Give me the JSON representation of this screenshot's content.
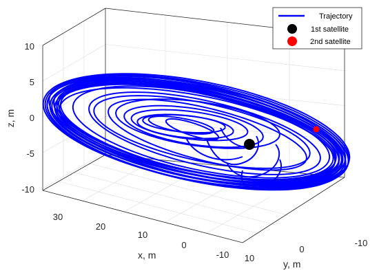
{
  "chart_data": {
    "type": "line",
    "projection": "3d",
    "title": "",
    "xlabel": "x, m",
    "ylabel": "y, m",
    "zlabel": "z, m",
    "xlim": [
      -10,
      35
    ],
    "ylim": [
      -10,
      10
    ],
    "zlim": [
      -12,
      11
    ],
    "x_ticks": [
      "30",
      "20",
      "10",
      "0",
      "-10"
    ],
    "y_ticks": [
      "10",
      "0",
      "-10"
    ],
    "z_ticks": [
      "10",
      "5",
      "0",
      "-5",
      "-10"
    ],
    "grid": true,
    "legend_position": "top-right",
    "series": [
      {
        "name": "Trajectory",
        "kind": "line",
        "color": "#0000ff",
        "description_points": "spiral converging toward 1st satellite"
      },
      {
        "name": "1st satellite",
        "kind": "marker",
        "color": "#000000",
        "point": [
          0,
          0,
          0
        ]
      },
      {
        "name": "2nd satellite",
        "kind": "marker",
        "color": "#ff0000",
        "point": [
          -8,
          -4,
          -1
        ]
      }
    ],
    "legend": [
      "Trajectory",
      "1st satellite",
      "2nd satellite"
    ]
  }
}
